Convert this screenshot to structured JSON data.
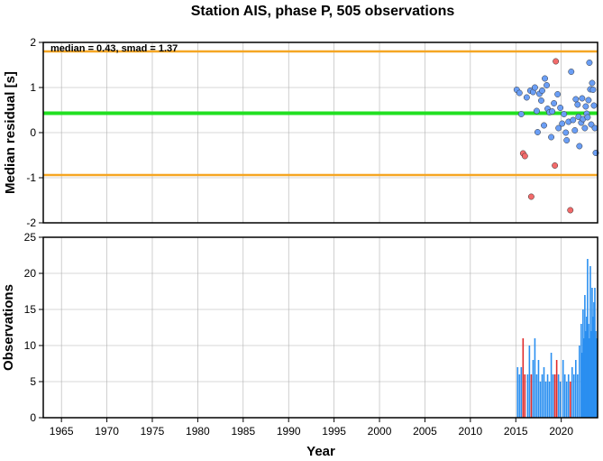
{
  "title": "Station AIS, phase P, 505 observations",
  "colors": {
    "median_line": "#22e022",
    "smad_line": "#f5a623",
    "point_ok": "#6a9ef5",
    "point_outlier": "#f26a6a",
    "bar_ok": "#2a8ff0",
    "bar_outlier": "#e02a2a",
    "grid": "#b0b0b0"
  },
  "chart_data": [
    {
      "type": "scatter",
      "ylabel": "Median residual [s]",
      "annotation": "median = 0.43, smad = 1.37",
      "xlim": [
        1963,
        2024
      ],
      "ylim": [
        -2,
        2
      ],
      "yticks": [
        -2,
        -1,
        0,
        1,
        2
      ],
      "grid": true,
      "median": 0.43,
      "smad_lower": -0.94,
      "smad_upper": 1.8,
      "points": [
        {
          "x": 2015.1,
          "y": 0.95,
          "outlier": false
        },
        {
          "x": 2015.4,
          "y": 0.88,
          "outlier": false
        },
        {
          "x": 2015.6,
          "y": 0.41,
          "outlier": false
        },
        {
          "x": 2015.8,
          "y": -0.46,
          "outlier": true
        },
        {
          "x": 2016.0,
          "y": -0.52,
          "outlier": true
        },
        {
          "x": 2016.2,
          "y": 0.78,
          "outlier": false
        },
        {
          "x": 2016.6,
          "y": 0.93,
          "outlier": false
        },
        {
          "x": 2016.7,
          "y": -1.42,
          "outlier": true
        },
        {
          "x": 2016.9,
          "y": 0.9,
          "outlier": false
        },
        {
          "x": 2017.1,
          "y": 1.0,
          "outlier": false
        },
        {
          "x": 2017.3,
          "y": 0.48,
          "outlier": false
        },
        {
          "x": 2017.4,
          "y": 0.01,
          "outlier": false
        },
        {
          "x": 2017.6,
          "y": 0.86,
          "outlier": false
        },
        {
          "x": 2017.8,
          "y": 0.71,
          "outlier": false
        },
        {
          "x": 2017.9,
          "y": 0.93,
          "outlier": false
        },
        {
          "x": 2018.1,
          "y": 0.16,
          "outlier": false
        },
        {
          "x": 2018.2,
          "y": 1.2,
          "outlier": false
        },
        {
          "x": 2018.4,
          "y": 1.05,
          "outlier": false
        },
        {
          "x": 2018.5,
          "y": 0.53,
          "outlier": false
        },
        {
          "x": 2018.7,
          "y": 0.45,
          "outlier": false
        },
        {
          "x": 2018.9,
          "y": -0.1,
          "outlier": false
        },
        {
          "x": 2019.0,
          "y": 0.47,
          "outlier": false
        },
        {
          "x": 2019.2,
          "y": 0.65,
          "outlier": false
        },
        {
          "x": 2019.3,
          "y": -0.73,
          "outlier": true
        },
        {
          "x": 2019.4,
          "y": 1.58,
          "outlier": true
        },
        {
          "x": 2019.6,
          "y": 0.85,
          "outlier": false
        },
        {
          "x": 2019.7,
          "y": 0.1,
          "outlier": false
        },
        {
          "x": 2019.9,
          "y": 0.55,
          "outlier": false
        },
        {
          "x": 2020.1,
          "y": 0.2,
          "outlier": false
        },
        {
          "x": 2020.3,
          "y": 0.41,
          "outlier": false
        },
        {
          "x": 2020.5,
          "y": 0.0,
          "outlier": false
        },
        {
          "x": 2020.6,
          "y": -0.17,
          "outlier": false
        },
        {
          "x": 2020.8,
          "y": 0.24,
          "outlier": false
        },
        {
          "x": 2021.0,
          "y": -1.72,
          "outlier": true
        },
        {
          "x": 2021.1,
          "y": 1.35,
          "outlier": false
        },
        {
          "x": 2021.3,
          "y": 0.28,
          "outlier": false
        },
        {
          "x": 2021.5,
          "y": 0.05,
          "outlier": false
        },
        {
          "x": 2021.6,
          "y": 0.74,
          "outlier": false
        },
        {
          "x": 2021.8,
          "y": 0.62,
          "outlier": false
        },
        {
          "x": 2021.9,
          "y": 0.35,
          "outlier": false
        },
        {
          "x": 2022.0,
          "y": -0.3,
          "outlier": false
        },
        {
          "x": 2022.2,
          "y": 0.22,
          "outlier": false
        },
        {
          "x": 2022.3,
          "y": 0.76,
          "outlier": false
        },
        {
          "x": 2022.4,
          "y": 0.3,
          "outlier": false
        },
        {
          "x": 2022.6,
          "y": 0.1,
          "outlier": false
        },
        {
          "x": 2022.7,
          "y": 0.58,
          "outlier": false
        },
        {
          "x": 2022.8,
          "y": 0.42,
          "outlier": false
        },
        {
          "x": 2022.9,
          "y": 0.34,
          "outlier": false
        },
        {
          "x": 2023.0,
          "y": 0.72,
          "outlier": false
        },
        {
          "x": 2023.1,
          "y": 1.55,
          "outlier": false
        },
        {
          "x": 2023.2,
          "y": 0.96,
          "outlier": false
        },
        {
          "x": 2023.3,
          "y": 0.18,
          "outlier": false
        },
        {
          "x": 2023.4,
          "y": 1.1,
          "outlier": false
        },
        {
          "x": 2023.5,
          "y": 0.95,
          "outlier": false
        },
        {
          "x": 2023.6,
          "y": 0.6,
          "outlier": false
        },
        {
          "x": 2023.7,
          "y": 0.1,
          "outlier": false
        },
        {
          "x": 2023.8,
          "y": -0.45,
          "outlier": false
        }
      ]
    },
    {
      "type": "bar",
      "xlabel": "Year",
      "ylabel": "Observations",
      "xlim": [
        1963,
        2024
      ],
      "ylim": [
        0,
        25
      ],
      "yticks": [
        0,
        5,
        10,
        15,
        20,
        25
      ],
      "xticks": [
        1965,
        1970,
        1975,
        1980,
        1985,
        1990,
        1995,
        2000,
        2005,
        2010,
        2015,
        2020
      ],
      "grid": true,
      "bars": [
        {
          "x": 2015.2,
          "y": 7,
          "outlier": false
        },
        {
          "x": 2015.4,
          "y": 6,
          "outlier": false
        },
        {
          "x": 2015.6,
          "y": 7,
          "outlier": false
        },
        {
          "x": 2015.8,
          "y": 11,
          "outlier": true
        },
        {
          "x": 2016.0,
          "y": 6,
          "outlier": true
        },
        {
          "x": 2016.3,
          "y": 6,
          "outlier": false
        },
        {
          "x": 2016.5,
          "y": 10,
          "outlier": false
        },
        {
          "x": 2016.7,
          "y": 6,
          "outlier": true
        },
        {
          "x": 2016.9,
          "y": 8,
          "outlier": false
        },
        {
          "x": 2017.1,
          "y": 11,
          "outlier": false
        },
        {
          "x": 2017.3,
          "y": 6,
          "outlier": false
        },
        {
          "x": 2017.5,
          "y": 8,
          "outlier": false
        },
        {
          "x": 2017.7,
          "y": 5,
          "outlier": false
        },
        {
          "x": 2017.9,
          "y": 6,
          "outlier": false
        },
        {
          "x": 2018.1,
          "y": 7,
          "outlier": false
        },
        {
          "x": 2018.3,
          "y": 5,
          "outlier": false
        },
        {
          "x": 2018.5,
          "y": 6,
          "outlier": false
        },
        {
          "x": 2018.7,
          "y": 5,
          "outlier": false
        },
        {
          "x": 2018.9,
          "y": 9,
          "outlier": false
        },
        {
          "x": 2019.1,
          "y": 6,
          "outlier": false
        },
        {
          "x": 2019.3,
          "y": 6,
          "outlier": true
        },
        {
          "x": 2019.5,
          "y": 8,
          "outlier": true
        },
        {
          "x": 2019.7,
          "y": 6,
          "outlier": false
        },
        {
          "x": 2019.9,
          "y": 5,
          "outlier": false
        },
        {
          "x": 2020.2,
          "y": 8,
          "outlier": false
        },
        {
          "x": 2020.4,
          "y": 6,
          "outlier": false
        },
        {
          "x": 2020.6,
          "y": 5,
          "outlier": false
        },
        {
          "x": 2020.8,
          "y": 6,
          "outlier": false
        },
        {
          "x": 2021.0,
          "y": 5,
          "outlier": true
        },
        {
          "x": 2021.2,
          "y": 7,
          "outlier": false
        },
        {
          "x": 2021.4,
          "y": 6,
          "outlier": false
        },
        {
          "x": 2021.6,
          "y": 8,
          "outlier": false
        },
        {
          "x": 2021.8,
          "y": 6,
          "outlier": false
        },
        {
          "x": 2022.0,
          "y": 10,
          "outlier": false
        },
        {
          "x": 2022.2,
          "y": 13,
          "outlier": false
        },
        {
          "x": 2022.3,
          "y": 9,
          "outlier": false
        },
        {
          "x": 2022.4,
          "y": 15,
          "outlier": false
        },
        {
          "x": 2022.5,
          "y": 11,
          "outlier": false
        },
        {
          "x": 2022.6,
          "y": 17,
          "outlier": false
        },
        {
          "x": 2022.7,
          "y": 12,
          "outlier": false
        },
        {
          "x": 2022.8,
          "y": 14,
          "outlier": false
        },
        {
          "x": 2022.9,
          "y": 22,
          "outlier": false
        },
        {
          "x": 2023.0,
          "y": 13,
          "outlier": false
        },
        {
          "x": 2023.1,
          "y": 11,
          "outlier": false
        },
        {
          "x": 2023.2,
          "y": 21,
          "outlier": false
        },
        {
          "x": 2023.3,
          "y": 12,
          "outlier": false
        },
        {
          "x": 2023.4,
          "y": 18,
          "outlier": false
        },
        {
          "x": 2023.5,
          "y": 14,
          "outlier": false
        },
        {
          "x": 2023.6,
          "y": 16,
          "outlier": false
        },
        {
          "x": 2023.7,
          "y": 18,
          "outlier": false
        },
        {
          "x": 2023.8,
          "y": 12,
          "outlier": false
        },
        {
          "x": 2023.9,
          "y": 11,
          "outlier": false
        }
      ]
    }
  ]
}
